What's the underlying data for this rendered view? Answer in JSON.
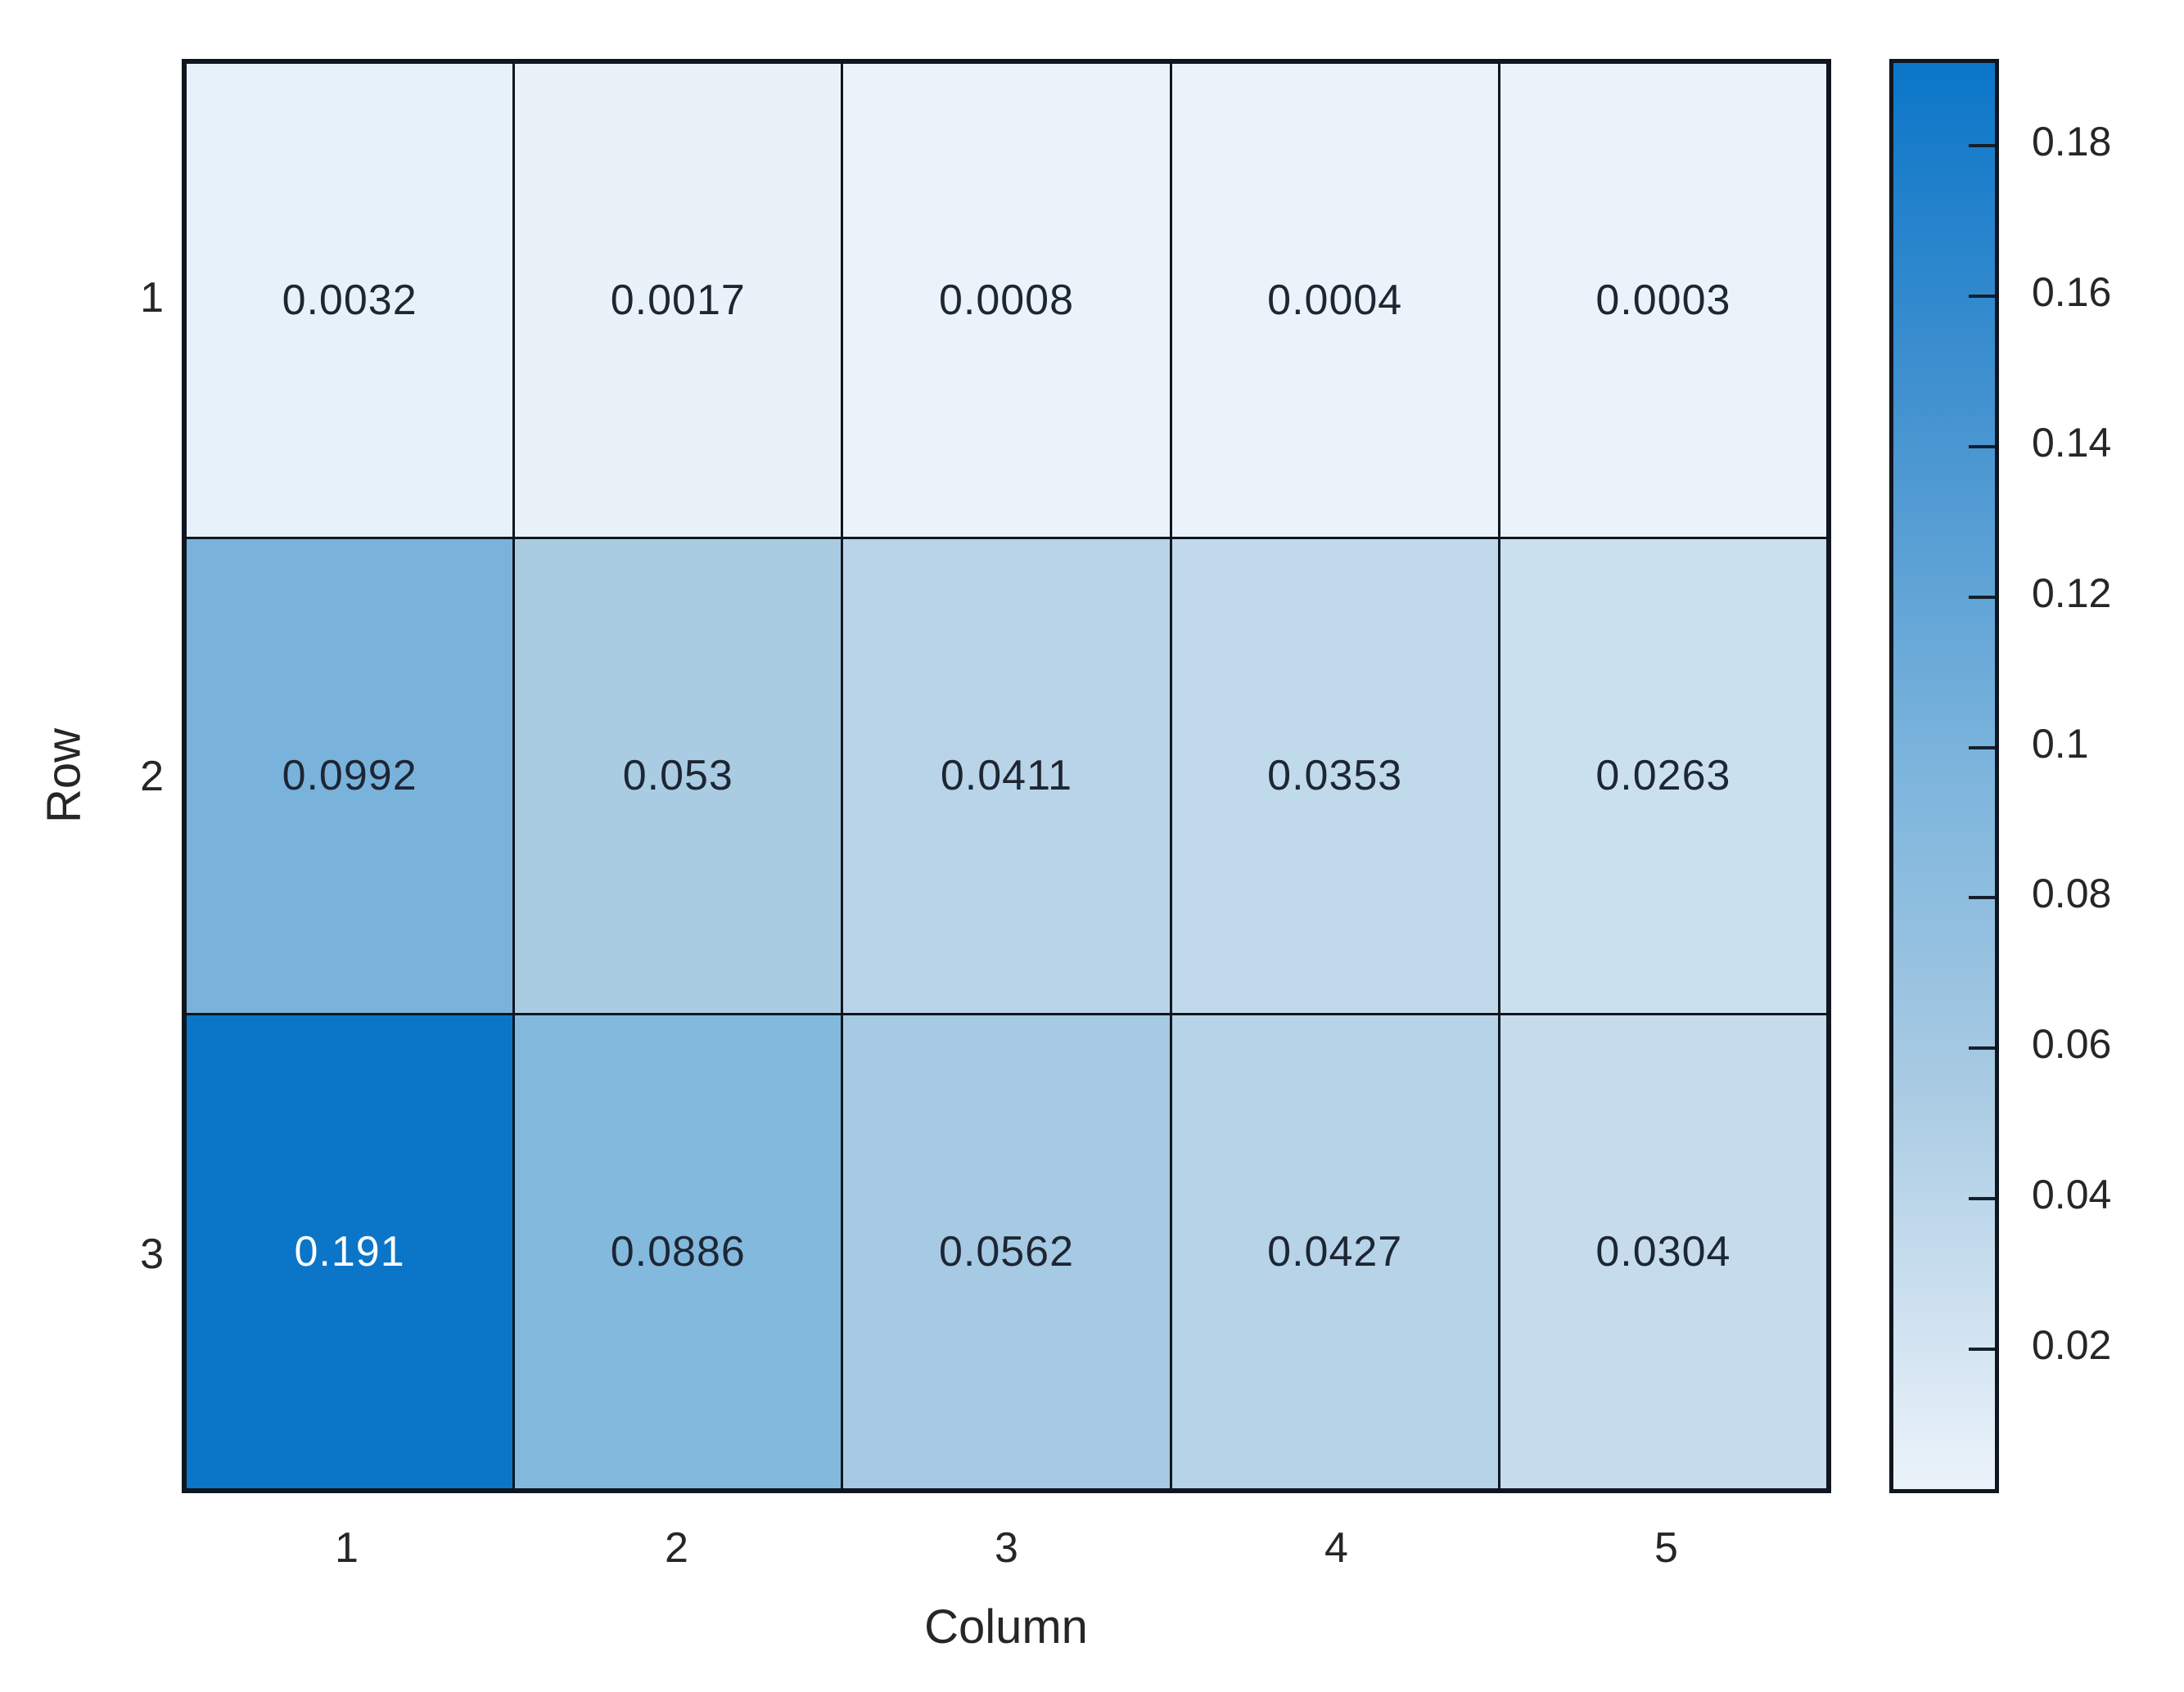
{
  "chart_data": {
    "type": "heatmap",
    "title": "",
    "xlabel": "Column",
    "ylabel": "Row",
    "x_tick_labels": [
      "1",
      "2",
      "3",
      "4",
      "5"
    ],
    "y_tick_labels": [
      "1",
      "2",
      "3"
    ],
    "rows": 3,
    "cols": 5,
    "values": [
      [
        0.0032,
        0.0017,
        0.0008,
        0.0004,
        0.0003
      ],
      [
        0.0992,
        0.053,
        0.0411,
        0.0353,
        0.0263
      ],
      [
        0.191,
        0.0886,
        0.0562,
        0.0427,
        0.0304
      ]
    ],
    "value_labels": [
      [
        "0.0032",
        "0.0017",
        "0.0008",
        "0.0004",
        "0.0003"
      ],
      [
        "0.0992",
        "0.053",
        "0.0411",
        "0.0353",
        "0.0263"
      ],
      [
        "0.191",
        "0.0886",
        "0.0562",
        "0.0427",
        "0.0304"
      ]
    ],
    "colorbar": {
      "cmin": 0.0003,
      "cmax": 0.191,
      "tick_labels": [
        "0.18",
        "0.16",
        "0.14",
        "0.12",
        "0.1",
        "0.08",
        "0.06",
        "0.04",
        "0.02"
      ],
      "tick_values": [
        0.18,
        0.16,
        0.14,
        0.12,
        0.1,
        0.08,
        0.06,
        0.04,
        0.02
      ],
      "position": "right"
    },
    "colormap": [
      {
        "t": 0,
        "color": "#ebf3fa"
      },
      {
        "t": 0.28,
        "color": "#a9cbe3"
      },
      {
        "t": 0.52,
        "color": "#79b3dc"
      },
      {
        "t": 0.76,
        "color": "#4392d0"
      },
      {
        "t": 1,
        "color": "#0b76c8"
      }
    ],
    "white_text_threshold": 0.7,
    "grid_on": true,
    "legend": null
  },
  "colors": {
    "background": "#ffffff",
    "grid_line": "#10161f",
    "cell_text_dark": "#1d2633",
    "cell_text_light": "#ffffff",
    "axis_text": "#262626"
  }
}
